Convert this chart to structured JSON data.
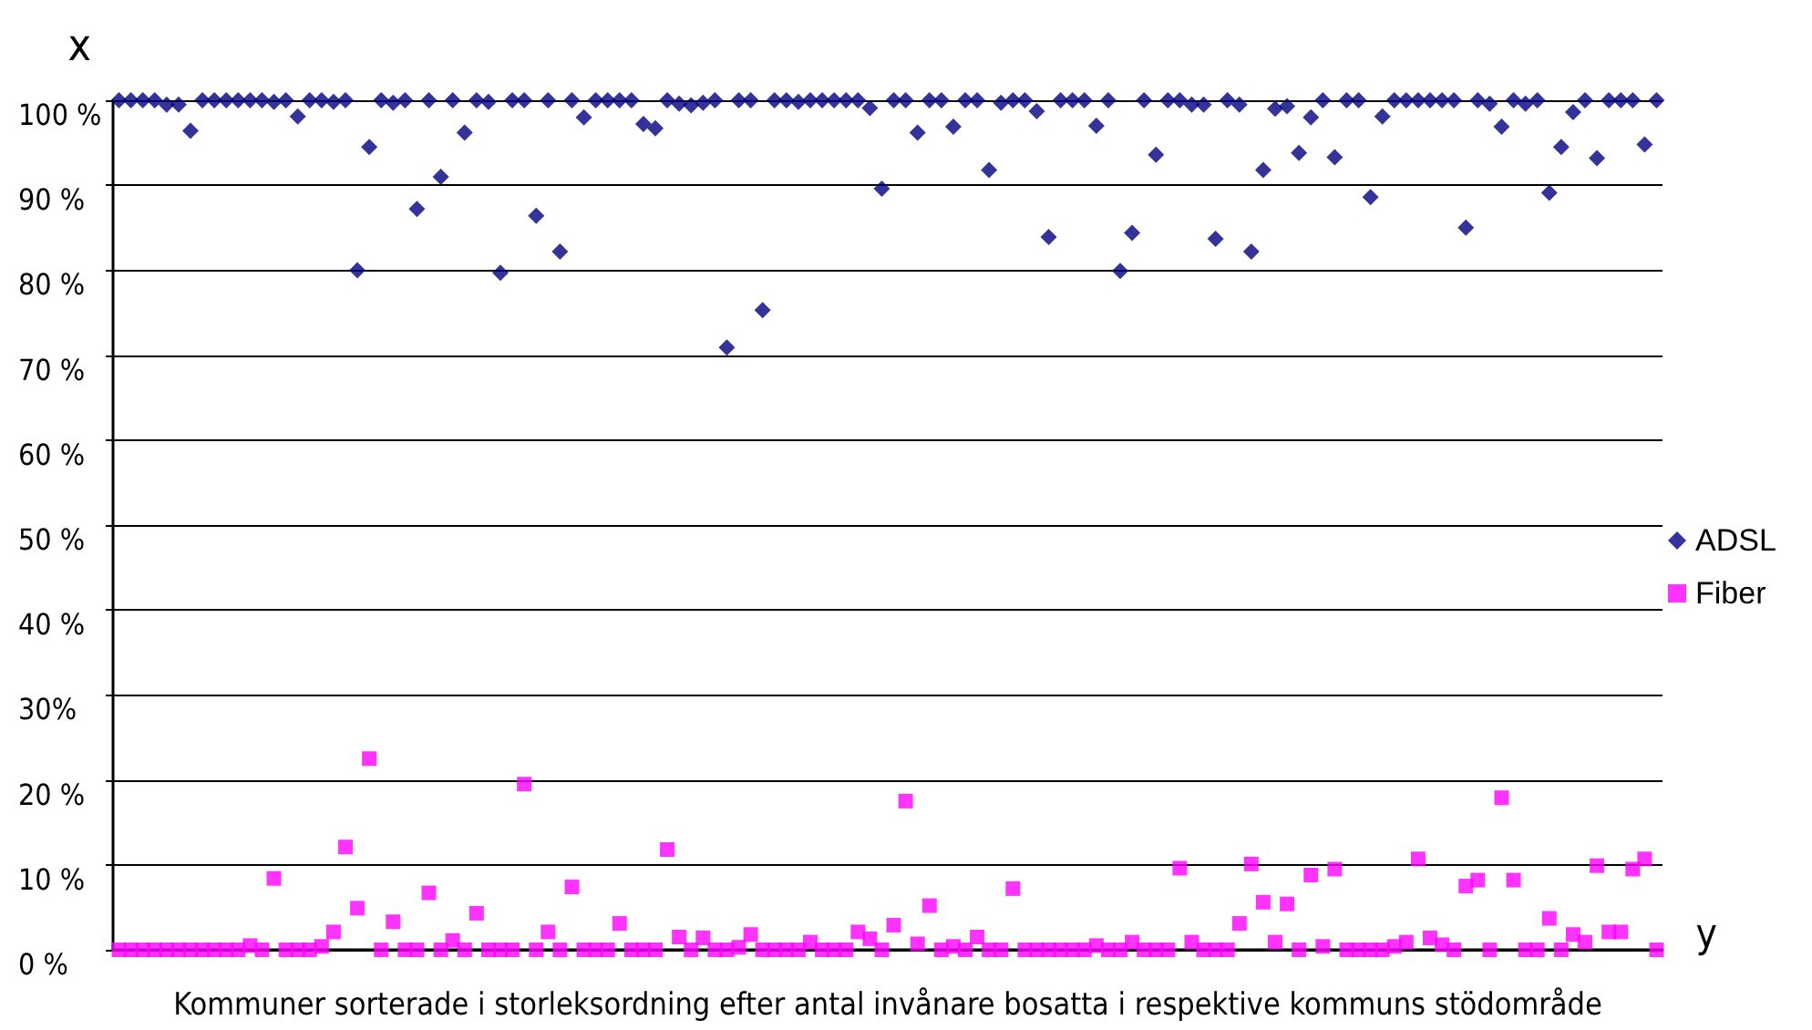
{
  "chart_data": {
    "type": "scatter",
    "xlabel": "Kommuner sorterade i storleksordning efter antal invånare bosatta i respektive kommuns stödområde",
    "ylabel": "x",
    "annotations": [
      "y"
    ],
    "categories": [
      null,
      null,
      null,
      null,
      null,
      null,
      null,
      null,
      null,
      null,
      null,
      null,
      null,
      null,
      null,
      null,
      null,
      null,
      null,
      null,
      null,
      null,
      null,
      null,
      null,
      null,
      null,
      null,
      null,
      null,
      null,
      null,
      null,
      null,
      null,
      null,
      null,
      null,
      null,
      null,
      null,
      null,
      null,
      null,
      null,
      null,
      null,
      null,
      null,
      null,
      null,
      null,
      null,
      null,
      null,
      null,
      null,
      null,
      null,
      null,
      null,
      null,
      null,
      null,
      null,
      null,
      null,
      null,
      null,
      null,
      null,
      null,
      null,
      null,
      null,
      null,
      null,
      null,
      null,
      null,
      null,
      null,
      null,
      null,
      null,
      null,
      null,
      null,
      null,
      null,
      null,
      null,
      null,
      null,
      null,
      null,
      null,
      null,
      null,
      null,
      null,
      null,
      null,
      null,
      null,
      null,
      null,
      null,
      null,
      null,
      null,
      null,
      null,
      null,
      null,
      null,
      null,
      null,
      null,
      null,
      null,
      null,
      null,
      null,
      null,
      null,
      null,
      null,
      null,
      null
    ],
    "series": [
      {
        "name": "ADSL",
        "color": "#000080",
        "marker": "diamond",
        "values": [
          100,
          100,
          100,
          100,
          99.5,
          99.5,
          96.4,
          100,
          100,
          100,
          100,
          100,
          100,
          99.8,
          100,
          98.1,
          100,
          100,
          99.8,
          100,
          80.0,
          94.5,
          100,
          99.7,
          100,
          87.2,
          100,
          91.0,
          100,
          96.2,
          100,
          99.8,
          79.7,
          100,
          100,
          86.4,
          100,
          82.2,
          100,
          98.0,
          100,
          100,
          100,
          100,
          97.2,
          96.7,
          100,
          99.6,
          99.4,
          99.7,
          100,
          70.9,
          100,
          100,
          75.3,
          100,
          100,
          99.8,
          100,
          100,
          100,
          100,
          100,
          99.1,
          89.6,
          100,
          100,
          96.2,
          100,
          100,
          96.9,
          100,
          100,
          91.8,
          99.7,
          100,
          100,
          98.7,
          83.9,
          100,
          100,
          100,
          97.0,
          100,
          79.9,
          84.4,
          100,
          93.6,
          100,
          100,
          99.5,
          99.5,
          83.7,
          100,
          99.5,
          82.2,
          91.8,
          99.0,
          99.3,
          93.8,
          98.0,
          100,
          93.3,
          100,
          100,
          88.6,
          98.1,
          100,
          100,
          100,
          100,
          100,
          100,
          85.0,
          100,
          99.6,
          96.9,
          100,
          99.6,
          100,
          89.1,
          94.5,
          98.6,
          100,
          93.2,
          100,
          100,
          100,
          94.8,
          100
        ]
      },
      {
        "name": "Fiber",
        "color": "#ff00ff",
        "marker": "square",
        "values": [
          0,
          0,
          0,
          0,
          0,
          0,
          0,
          0,
          0,
          0,
          0,
          0.5,
          0,
          8.4,
          0,
          0,
          0,
          0.4,
          2.1,
          12.1,
          4.9,
          22.5,
          0,
          3.3,
          0,
          0,
          6.7,
          0,
          1.1,
          0,
          4.3,
          0,
          0,
          0,
          19.5,
          0,
          2.1,
          0,
          7.4,
          0,
          0,
          0,
          3.1,
          0,
          0,
          0,
          11.8,
          1.5,
          0,
          1.4,
          0,
          0,
          0.3,
          1.8,
          0,
          0,
          0,
          0,
          0.9,
          0,
          0,
          0,
          2.1,
          1.3,
          0,
          2.9,
          17.5,
          0.7,
          5.2,
          0,
          0.4,
          0,
          1.5,
          0,
          0,
          7.2,
          0,
          0,
          0,
          0,
          0,
          0,
          0.5,
          0,
          0,
          0.9,
          0,
          0,
          0,
          9.6,
          0.9,
          0,
          0,
          0,
          3.1,
          10.1,
          5.6,
          0.9,
          5.4,
          0,
          8.8,
          0.4,
          9.5,
          0,
          0,
          0,
          0,
          0.4,
          0.9,
          10.7,
          1.4,
          0.6,
          0,
          7.5,
          8.2,
          0,
          17.9,
          8.2,
          0,
          0,
          3.7,
          0,
          1.8,
          0.9,
          9.9,
          2.1,
          2.1,
          9.5,
          10.7,
          0
        ]
      }
    ],
    "ylim": [
      0,
      100
    ],
    "yticks": [
      {
        "value": 0,
        "label": "0 %"
      },
      {
        "value": 10,
        "label": "10 %"
      },
      {
        "value": 20,
        "label": "20 %"
      },
      {
        "value": 30,
        "label": "30%"
      },
      {
        "value": 40,
        "label": "40 %"
      },
      {
        "value": 50,
        "label": "50 %"
      },
      {
        "value": 60,
        "label": "60 %"
      },
      {
        "value": 70,
        "label": "70 %"
      },
      {
        "value": 80,
        "label": "80 %"
      },
      {
        "value": 90,
        "label": "90 %"
      },
      {
        "value": 100,
        "label": "100 %"
      }
    ],
    "grid": "y",
    "legend": "right"
  }
}
